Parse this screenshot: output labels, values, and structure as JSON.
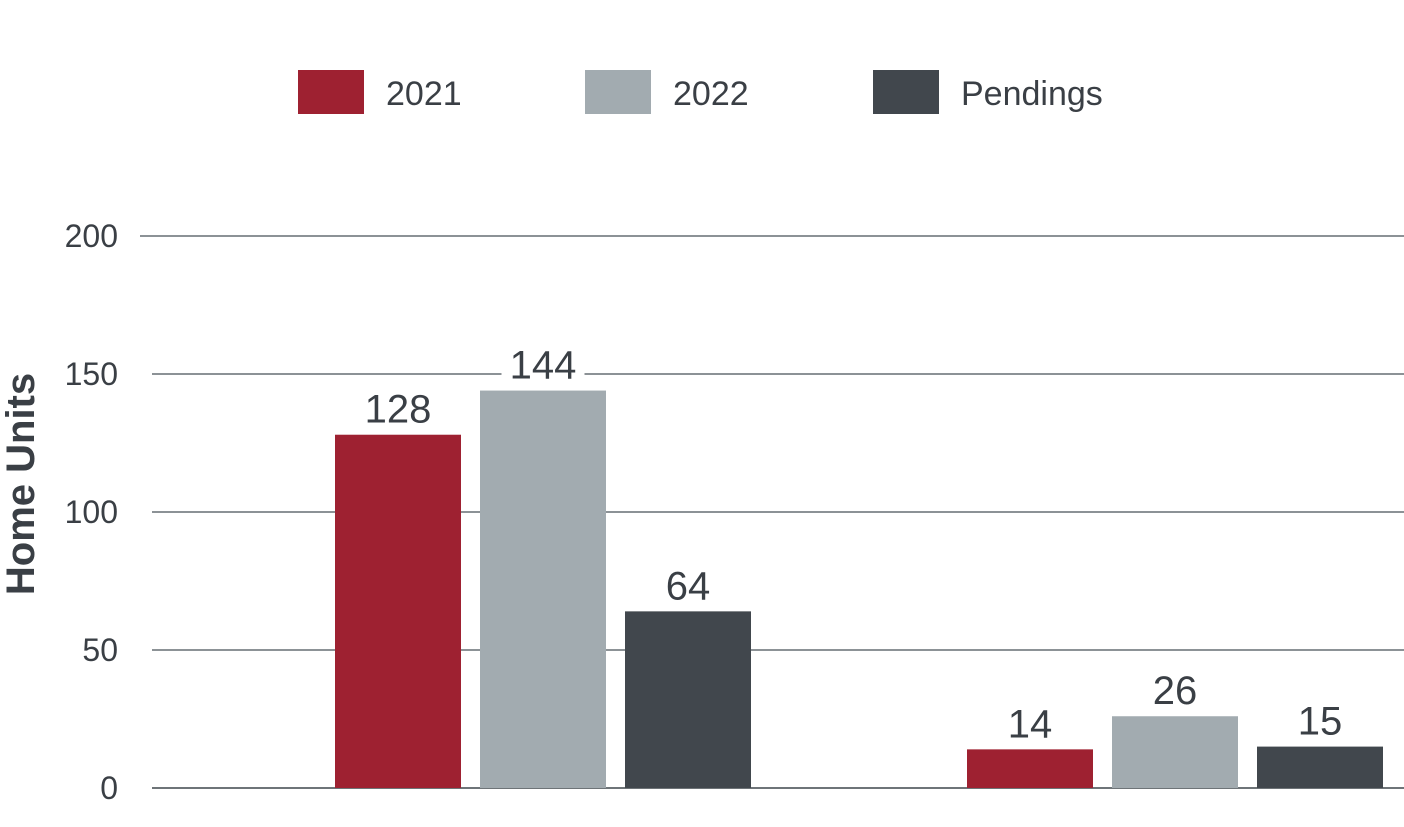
{
  "chart_data": {
    "type": "bar",
    "title": "",
    "xlabel": "",
    "ylabel": "Home Units",
    "categories": [
      "",
      ""
    ],
    "ylim": [
      0,
      200
    ],
    "yticks": [
      0,
      50,
      100,
      150,
      200
    ],
    "grid": true,
    "legend_position": "top-center",
    "series": [
      {
        "name": "2021",
        "color": "#9E2131",
        "values": [
          128,
          14
        ],
        "labels": [
          "128",
          "14"
        ]
      },
      {
        "name": "2022",
        "color": "#A2ABB0",
        "values": [
          144,
          26
        ],
        "labels": [
          "144",
          "26"
        ]
      },
      {
        "name": "Pendings",
        "color": "#41474D",
        "values": [
          64,
          15
        ],
        "labels": [
          "64",
          "15"
        ]
      }
    ]
  }
}
